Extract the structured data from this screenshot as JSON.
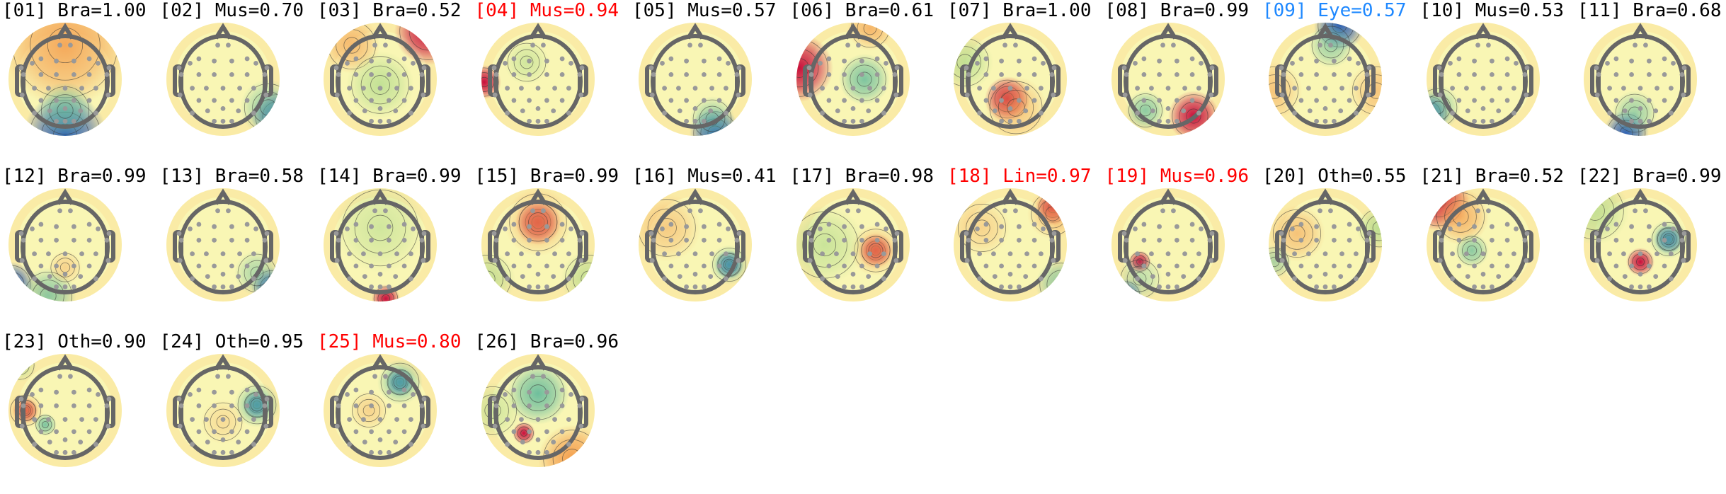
{
  "colors": {
    "default_title": "#000000",
    "flagged_title": "#ff0000",
    "eye_title": "#1e88ff",
    "head_outline": "#666666",
    "sensor": "#999999"
  },
  "components": [
    {
      "title": "[01] Bra=1.00",
      "color": "default"
    },
    {
      "title": "[02] Mus=0.70",
      "color": "default"
    },
    {
      "title": "[03] Bra=0.52",
      "color": "default"
    },
    {
      "title": "[04] Mus=0.94",
      "color": "red"
    },
    {
      "title": "[05] Mus=0.57",
      "color": "default"
    },
    {
      "title": "[06] Bra=0.61",
      "color": "default"
    },
    {
      "title": "[07] Bra=1.00",
      "color": "default"
    },
    {
      "title": "[08] Bra=0.99",
      "color": "default"
    },
    {
      "title": "[09] Eye=0.57",
      "color": "blue"
    },
    {
      "title": "[10] Mus=0.53",
      "color": "default"
    },
    {
      "title": "[11] Bra=0.68",
      "color": "default"
    },
    {
      "title": "[12] Bra=0.99",
      "color": "default"
    },
    {
      "title": "[13] Bra=0.58",
      "color": "default"
    },
    {
      "title": "[14] Bra=0.99",
      "color": "default"
    },
    {
      "title": "[15] Bra=0.99",
      "color": "default"
    },
    {
      "title": "[16] Mus=0.41",
      "color": "default"
    },
    {
      "title": "[17] Bra=0.98",
      "color": "default"
    },
    {
      "title": "[18] Lin=0.97",
      "color": "red"
    },
    {
      "title": "[19] Mus=0.96",
      "color": "red"
    },
    {
      "title": "[20] Oth=0.55",
      "color": "default"
    },
    {
      "title": "[21] Bra=0.52",
      "color": "default"
    },
    {
      "title": "[22] Bra=0.99",
      "color": "default"
    },
    {
      "title": "[23] Oth=0.90",
      "color": "default"
    },
    {
      "title": "[24] Oth=0.95",
      "color": "default"
    },
    {
      "title": "[25] Mus=0.80",
      "color": "red"
    },
    {
      "title": "[26] Bra=0.96",
      "color": "default"
    }
  ]
}
